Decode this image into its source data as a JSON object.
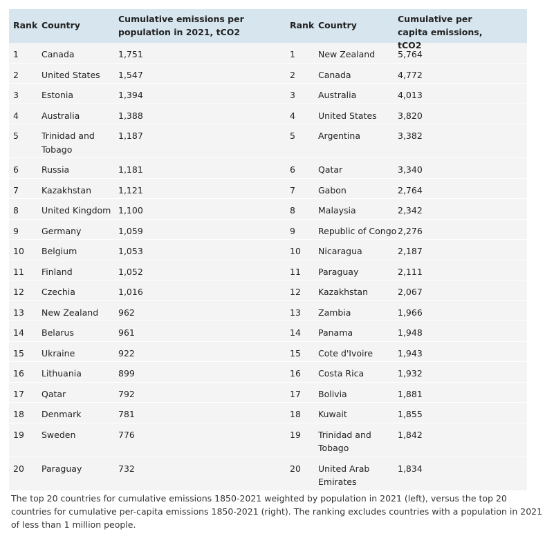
{
  "headers": {
    "rank_left": "Rank",
    "country_left": "Country",
    "value_left": "Cumulative emissions per population in 2021, tCO2",
    "rank_right": "Rank",
    "country_right": "Country",
    "value_right": "Cumulative per capita emissions, tCO2"
  },
  "rows": [
    {
      "rank_l": "1",
      "country_l": "Canada",
      "val_l": "1,751",
      "rank_r": "1",
      "country_r": "New Zealand",
      "val_r": "5,764"
    },
    {
      "rank_l": "2",
      "country_l": "United States",
      "val_l": "1,547",
      "rank_r": "2",
      "country_r": "Canada",
      "val_r": "4,772"
    },
    {
      "rank_l": "3",
      "country_l": "Estonia",
      "val_l": "1,394",
      "rank_r": "3",
      "country_r": "Australia",
      "val_r": "4,013"
    },
    {
      "rank_l": "4",
      "country_l": "Australia",
      "val_l": "1,388",
      "rank_r": "4",
      "country_r": "United States",
      "val_r": "3,820"
    },
    {
      "rank_l": "5",
      "country_l": "Trinidad and Tobago",
      "val_l": "1,187",
      "rank_r": "5",
      "country_r": "Argentina",
      "val_r": "3,382"
    },
    {
      "rank_l": "6",
      "country_l": "Russia",
      "val_l": "1,181",
      "rank_r": "6",
      "country_r": "Qatar",
      "val_r": "3,340"
    },
    {
      "rank_l": "7",
      "country_l": "Kazakhstan",
      "val_l": "1,121",
      "rank_r": "7",
      "country_r": "Gabon",
      "val_r": "2,764"
    },
    {
      "rank_l": "8",
      "country_l": "United Kingdom",
      "val_l": "1,100",
      "rank_r": "8",
      "country_r": "Malaysia",
      "val_r": "2,342"
    },
    {
      "rank_l": "9",
      "country_l": "Germany",
      "val_l": "1,059",
      "rank_r": "9",
      "country_r": "Republic of Congo",
      "val_r": "2,276"
    },
    {
      "rank_l": "10",
      "country_l": "Belgium",
      "val_l": "1,053",
      "rank_r": "10",
      "country_r": "Nicaragua",
      "val_r": "2,187"
    },
    {
      "rank_l": "11",
      "country_l": "Finland",
      "val_l": "1,052",
      "rank_r": "11",
      "country_r": "Paraguay",
      "val_r": "2,111"
    },
    {
      "rank_l": "12",
      "country_l": "Czechia",
      "val_l": "1,016",
      "rank_r": "12",
      "country_r": "Kazakhstan",
      "val_r": "2,067"
    },
    {
      "rank_l": "13",
      "country_l": "New Zealand",
      "val_l": "962",
      "rank_r": "13",
      "country_r": "Zambia",
      "val_r": "1,966"
    },
    {
      "rank_l": "14",
      "country_l": "Belarus",
      "val_l": "961",
      "rank_r": "14",
      "country_r": "Panama",
      "val_r": "1,948"
    },
    {
      "rank_l": "15",
      "country_l": "Ukraine",
      "val_l": "922",
      "rank_r": "15",
      "country_r": "Cote d'Ivoire",
      "val_r": "1,943"
    },
    {
      "rank_l": "16",
      "country_l": "Lithuania",
      "val_l": "899",
      "rank_r": "16",
      "country_r": "Costa Rica",
      "val_r": "1,932"
    },
    {
      "rank_l": "17",
      "country_l": "Qatar",
      "val_l": "792",
      "rank_r": "17",
      "country_r": "Bolivia",
      "val_r": "1,881"
    },
    {
      "rank_l": "18",
      "country_l": "Denmark",
      "val_l": "781",
      "rank_r": "18",
      "country_r": "Kuwait",
      "val_r": "1,855"
    },
    {
      "rank_l": "19",
      "country_l": "Sweden",
      "val_l": "776",
      "rank_r": "19",
      "country_r": "Trinidad and Tobago",
      "val_r": "1,842"
    },
    {
      "rank_l": "20",
      "country_l": "Paraguay",
      "val_l": "732",
      "rank_r": "20",
      "country_r": "United Arab Emirates",
      "val_r": "1,834"
    }
  ],
  "caption": "The top 20 countries for cumulative emissions 1850-2021 weighted by population in 2021 (left), versus the top 20 countries for cumulative per-capita emissions 1850-2021 (right). The ranking excludes countries with a population in 2021 of less than 1 million people."
}
